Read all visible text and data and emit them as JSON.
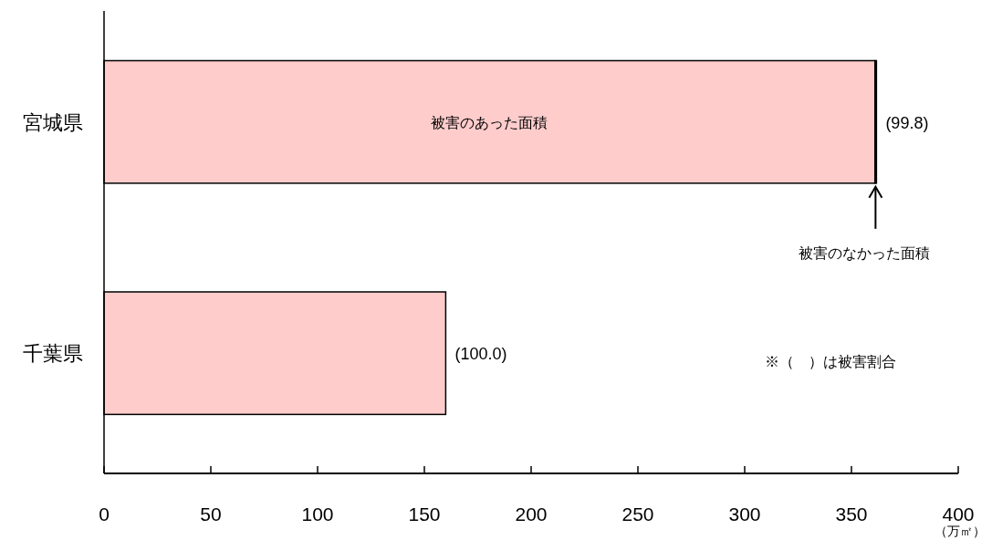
{
  "chart_data": {
    "type": "bar",
    "orientation": "horizontal",
    "stacked": true,
    "categories": [
      "宮城県",
      "千葉県"
    ],
    "series": [
      {
        "name": "被害のあった面積",
        "color": "#ffcccc",
        "values": [
          361,
          160
        ]
      },
      {
        "name": "被害のなかった面積",
        "color": "#000000",
        "values": [
          0.7,
          0
        ]
      }
    ],
    "xlabel": "（万㎡）",
    "xlim": [
      0,
      400
    ],
    "xticks": [
      0,
      50,
      100,
      150,
      200,
      250,
      300,
      350,
      400
    ],
    "grid": false,
    "annotations": [
      {
        "text": "(99.8)",
        "x": 361.7,
        "y": "宮城県"
      },
      {
        "text": "(100.0)",
        "x": 160,
        "y": "千葉県"
      },
      "※（　）は被害割合"
    ]
  }
}
